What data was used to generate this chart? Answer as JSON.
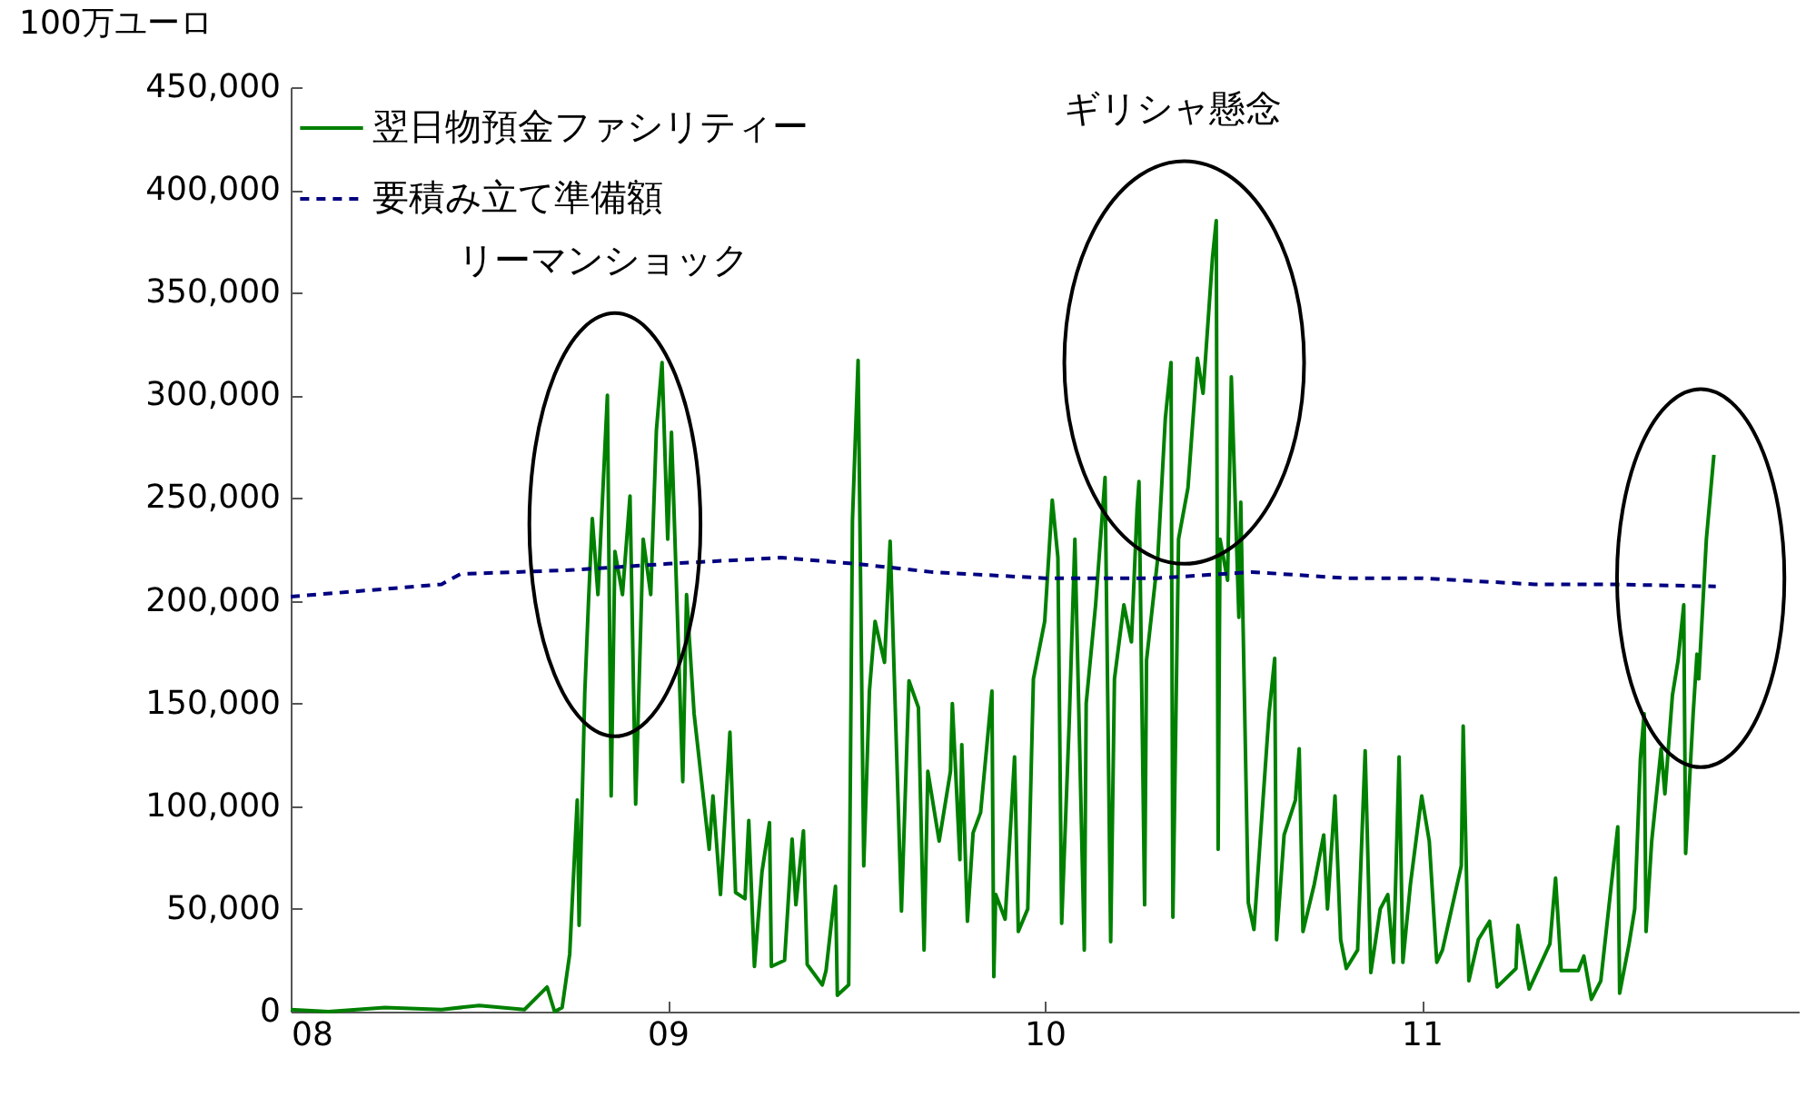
{
  "chart_data": {
    "type": "line",
    "ylabel": "100万ユーロ",
    "xlim": [
      2008,
      2012
    ],
    "xticks": [
      {
        "value": 2008,
        "label": "08"
      },
      {
        "value": 2009,
        "label": "09"
      },
      {
        "value": 2010,
        "label": "10"
      },
      {
        "value": 2011,
        "label": "11"
      }
    ],
    "ylim": [
      0,
      450000
    ],
    "yticks": [
      0,
      {
        "value": 50000,
        "label": "50,000"
      },
      {
        "value": 100000,
        "label": "100,000"
      },
      {
        "value": 150000,
        "label": "150,000"
      },
      {
        "value": 200000,
        "label": "200,000"
      },
      {
        "value": 250000,
        "label": "250,000"
      },
      {
        "value": 300000,
        "label": "300,000"
      },
      {
        "value": 350000,
        "label": "350,000"
      },
      {
        "value": 400000,
        "label": "400,000"
      },
      {
        "value": 450000,
        "label": "450,000"
      }
    ],
    "grid": false,
    "legend": "top left",
    "marker": "none",
    "annotations": [
      "リーマンショック",
      "ギリシャ懸念"
    ],
    "series": [
      {
        "name": "翌日物預金ファシリティー",
        "color": "#008000",
        "line_style": "solid",
        "x": [
          2008.0,
          2008.1,
          2008.25,
          2008.4,
          2008.5,
          2008.62,
          2008.68,
          2008.7,
          2008.72,
          2008.74,
          2008.76,
          2008.765,
          2008.78,
          2008.79,
          2008.8,
          2008.815,
          2008.84,
          2008.85,
          2008.86,
          2008.88,
          2008.9,
          2008.915,
          2008.935,
          2008.955,
          2008.97,
          2008.985,
          2009.0,
          2009.01,
          2009.04,
          2009.05,
          2009.07,
          2009.11,
          2009.12,
          2009.14,
          2009.165,
          2009.18,
          2009.205,
          2009.215,
          2009.23,
          2009.25,
          2009.27,
          2009.275,
          2009.31,
          2009.33,
          2009.34,
          2009.36,
          2009.37,
          2009.41,
          2009.42,
          2009.445,
          2009.45,
          2009.48,
          2009.49,
          2009.505,
          2009.52,
          2009.535,
          2009.55,
          2009.575,
          2009.59,
          2009.62,
          2009.64,
          2009.665,
          2009.68,
          2009.69,
          2009.72,
          2009.75,
          2009.755,
          2009.775,
          2009.78,
          2009.795,
          2009.81,
          2009.83,
          2009.86,
          2009.865,
          2009.87,
          2009.895,
          2009.92,
          2009.93,
          2009.955,
          2009.97,
          2010.0,
          2010.02,
          2010.035,
          2010.045,
          2010.065,
          2010.08,
          2010.105,
          2010.11,
          2010.135,
          2010.16,
          2010.175,
          2010.185,
          2010.21,
          2010.23,
          2010.245,
          2010.25,
          2010.265,
          2010.27,
          2010.3,
          2010.32,
          2010.335,
          2010.34,
          2010.355,
          2010.38,
          2010.405,
          2010.42,
          2010.445,
          2010.455,
          2010.46,
          2010.465,
          2010.485,
          2010.495,
          2010.515,
          2010.52,
          2010.54,
          2010.555,
          2010.595,
          2010.61,
          2010.615,
          2010.635,
          2010.665,
          2010.675,
          2010.685,
          2010.715,
          2010.74,
          2010.75,
          2010.77,
          2010.785,
          2010.8,
          2010.83,
          2010.85,
          2010.865,
          2010.89,
          2010.91,
          2010.925,
          2010.94,
          2010.95,
          2010.97,
          2011.0,
          2011.02,
          2011.04,
          2011.055,
          2011.105,
          2011.11,
          2011.125,
          2011.15,
          2011.18,
          2011.2,
          2011.25,
          2011.255,
          2011.285,
          2011.34,
          2011.355,
          2011.37,
          2011.415,
          2011.43,
          2011.45,
          2011.475,
          2011.5,
          2011.52,
          2011.525,
          2011.55,
          2011.565,
          2011.58,
          2011.59,
          2011.595,
          2011.61,
          2011.635,
          2011.645,
          2011.665,
          2011.68,
          2011.695,
          2011.7,
          2011.72,
          2011.73,
          2011.735,
          2011.755,
          2011.775
        ],
        "values": [
          1000,
          0,
          2000,
          1000,
          3000,
          1000,
          12000,
          0,
          2000,
          28000,
          103000,
          42000,
          155000,
          200000,
          240000,
          203000,
          300000,
          105000,
          224000,
          203000,
          251000,
          101000,
          230000,
          203000,
          283000,
          316000,
          230000,
          282000,
          112000,
          203000,
          145000,
          79000,
          105000,
          57000,
          136000,
          58000,
          55000,
          93000,
          22000,
          68000,
          92000,
          22000,
          25000,
          84000,
          52000,
          88000,
          23000,
          13000,
          20000,
          61000,
          8000,
          13000,
          239000,
          317000,
          71000,
          156000,
          190000,
          170000,
          229000,
          49000,
          161000,
          148000,
          30000,
          117000,
          83000,
          117000,
          150000,
          74000,
          130000,
          44000,
          87000,
          97000,
          156000,
          17000,
          57000,
          45000,
          124000,
          39000,
          50000,
          162000,
          190000,
          249000,
          221000,
          43000,
          141000,
          230000,
          30000,
          150000,
          198000,
          260000,
          34000,
          162000,
          198000,
          180000,
          245000,
          258000,
          52000,
          171000,
          221000,
          289000,
          316000,
          46000,
          230000,
          255000,
          318000,
          301000,
          367000,
          385000,
          79000,
          230000,
          210000,
          309000,
          192000,
          248000,
          53000,
          40000,
          145000,
          172000,
          35000,
          86000,
          103000,
          128000,
          39000,
          62000,
          86000,
          50000,
          105000,
          35000,
          21000,
          30000,
          127000,
          19000,
          50000,
          57000,
          24000,
          124000,
          24000,
          62000,
          105000,
          83000,
          24000,
          30000,
          71000,
          139000,
          15000,
          35000,
          44000,
          12000,
          21000,
          42000,
          11000,
          33000,
          65000,
          20000,
          20000,
          27000,
          6000,
          15000,
          57000,
          90000,
          9000,
          33000,
          50000,
          123000,
          145000,
          39000,
          83000,
          128000,
          106000,
          154000,
          171000,
          198000,
          77000,
          145000,
          174000,
          162000,
          230000,
          271000
        ]
      },
      {
        "name": "要積み立て準備額",
        "color": "#000080",
        "line_style": "dashed",
        "x": [
          2008.0,
          2008.4,
          2008.45,
          2008.75,
          2009.0,
          2009.3,
          2009.5,
          2009.7,
          2010.0,
          2010.3,
          2010.55,
          2010.8,
          2011.0,
          2011.3,
          2011.5,
          2011.78
        ],
        "values": [
          202000,
          208000,
          213000,
          215000,
          218000,
          221000,
          218000,
          214000,
          211000,
          211000,
          214000,
          211000,
          211000,
          208000,
          208000,
          207000
        ]
      }
    ]
  }
}
